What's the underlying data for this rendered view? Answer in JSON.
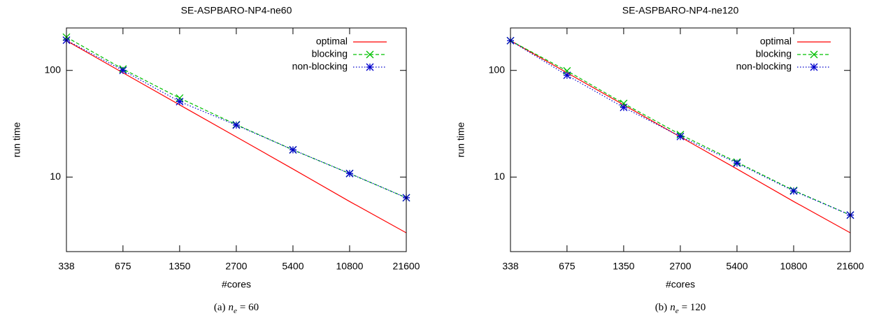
{
  "chart_data": [
    {
      "type": "line",
      "title": "SE-ASPBARO-NP4-ne60",
      "xlabel": "#cores",
      "ylabel": "run time",
      "x": [
        338,
        675,
        1350,
        2700,
        5400,
        10800,
        21600
      ],
      "xlim": [
        338,
        21600
      ],
      "xticks": [
        338,
        675,
        1350,
        2700,
        5400,
        10800,
        21600
      ],
      "ylim": [
        2,
        250
      ],
      "yticks": [
        10,
        100
      ],
      "xscale": "log",
      "yscale": "log",
      "legend": "upper right",
      "series": [
        {
          "name": "optimal",
          "color": "#ff0000",
          "dash": "solid",
          "marker": "none",
          "values": [
            190,
            95,
            47.5,
            23.8,
            11.9,
            5.9,
            3.0
          ]
        },
        {
          "name": "blocking",
          "color": "#00c000",
          "dash": "dashed",
          "marker": "x",
          "values": [
            205,
            103,
            55,
            31,
            18,
            10.8,
            6.4
          ]
        },
        {
          "name": "non-blocking",
          "color": "#0000cc",
          "dash": "dotted",
          "marker": "star",
          "values": [
            192,
            100,
            51,
            30.7,
            18,
            10.8,
            6.4
          ]
        }
      ],
      "caption_label": "(a)",
      "caption_var": "n",
      "caption_sub": "e",
      "caption_rest": "= 60"
    },
    {
      "type": "line",
      "title": "SE-ASPBARO-NP4-ne120",
      "xlabel": "#cores",
      "ylabel": "run time",
      "x": [
        338,
        675,
        1350,
        2700,
        5400,
        10800,
        21600
      ],
      "xlim": [
        338,
        21600
      ],
      "xticks": [
        338,
        675,
        1350,
        2700,
        5400,
        10800,
        21600
      ],
      "ylim": [
        2,
        250
      ],
      "yticks": [
        10,
        100
      ],
      "xscale": "log",
      "yscale": "log",
      "legend": "upper right",
      "series": [
        {
          "name": "optimal",
          "color": "#ff0000",
          "dash": "solid",
          "marker": "none",
          "values": [
            190,
            95,
            47.5,
            23.8,
            11.9,
            5.9,
            3.0
          ]
        },
        {
          "name": "blocking",
          "color": "#00c000",
          "dash": "dashed",
          "marker": "x",
          "values": [
            190,
            99,
            49,
            25,
            13.8,
            7.5,
            4.4
          ]
        },
        {
          "name": "non-blocking",
          "color": "#0000cc",
          "dash": "dotted",
          "marker": "star",
          "values": [
            190,
            90,
            45,
            24,
            13.5,
            7.4,
            4.4
          ]
        }
      ],
      "caption_label": "(b)",
      "caption_var": "n",
      "caption_sub": "e",
      "caption_rest": "= 120"
    }
  ]
}
